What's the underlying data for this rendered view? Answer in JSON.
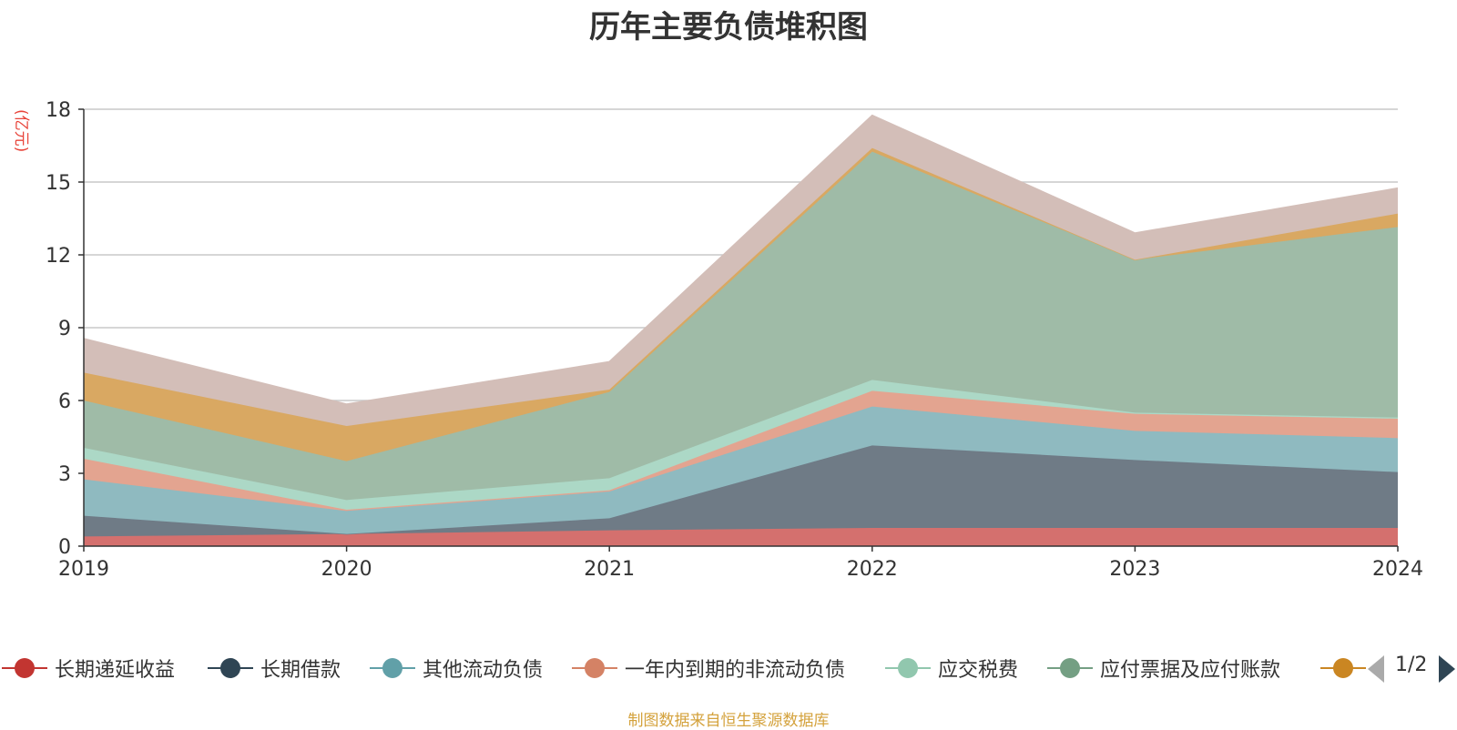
{
  "title": "历年主要负债堆积图",
  "unit_label": "(亿元)",
  "source_text": "制图数据来自恒生聚源数据库",
  "legend_page": "1/2",
  "chart_data": {
    "type": "area",
    "stacked": true,
    "title": "历年主要负债堆积图",
    "ylabel": "(亿元)",
    "categories": [
      "2019",
      "2020",
      "2021",
      "2022",
      "2023",
      "2024"
    ],
    "ylim": [
      0,
      18
    ],
    "yticks": [
      0,
      3,
      6,
      9,
      12,
      15,
      18
    ],
    "grid": true,
    "series": [
      {
        "name": "长期递延收益",
        "color": "#d4706e",
        "marker": "#c23531",
        "values": [
          0.4,
          0.5,
          0.65,
          0.75,
          0.75,
          0.75
        ]
      },
      {
        "name": "长期借款",
        "color": "#6f7b86",
        "marker": "#2f4554",
        "values": [
          0.85,
          0.0,
          0.5,
          3.4,
          2.8,
          2.3
        ]
      },
      {
        "name": "其他流动负债",
        "color": "#8fbac0",
        "marker": "#61a0a8",
        "values": [
          1.5,
          0.95,
          1.1,
          1.6,
          1.2,
          1.4
        ]
      },
      {
        "name": "一年内到期的非流动负债",
        "color": "#e3a490",
        "marker": "#d48265",
        "values": [
          0.85,
          0.05,
          0.05,
          0.65,
          0.7,
          0.8
        ]
      },
      {
        "name": "应交税费",
        "color": "#acd8c6",
        "marker": "#91c7ae",
        "values": [
          0.45,
          0.4,
          0.5,
          0.45,
          0.05,
          0.05
        ]
      },
      {
        "name": "应付票据及应付账款",
        "color": "#9fbba7",
        "marker": "#749f83",
        "values": [
          1.95,
          1.6,
          3.55,
          9.4,
          6.3,
          7.85
        ]
      },
      {
        "name": "",
        "color": "#d9a862",
        "marker": "#ca8622",
        "values": [
          1.15,
          1.45,
          0.1,
          0.15,
          0.0,
          0.55
        ]
      },
      {
        "name": "",
        "color": "#d3beb8",
        "marker": "#bda29a",
        "values": [
          1.4,
          0.9,
          1.15,
          1.35,
          1.1,
          1.05
        ]
      }
    ],
    "legend": [
      "长期递延收益",
      "长期借款",
      "其他流动负债",
      "一年内到期的非流动负债",
      "应交税费",
      "应付票据及应付账款",
      ""
    ]
  }
}
